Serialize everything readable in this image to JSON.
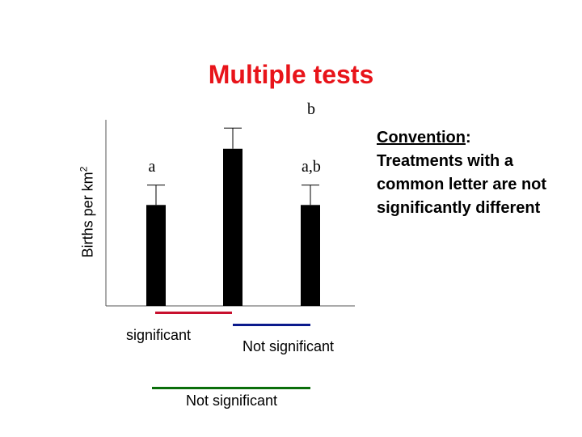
{
  "title": "Multiple tests",
  "chart_data": {
    "type": "bar",
    "title": "Multiple tests",
    "ylabel_text": "Births per km",
    "ylabel_superscript": "2",
    "xlabel": "",
    "error_bars": true,
    "grid": false,
    "categories": [
      "",
      "",
      ""
    ],
    "values": [
      122,
      190,
      122
    ],
    "error": [
      24,
      25,
      24
    ],
    "ylim": [
      0,
      225
    ],
    "letters": [
      "a",
      "b",
      "a,b"
    ]
  },
  "comparisons": [
    {
      "label": "significant",
      "color": "#c8102e"
    },
    {
      "label": "Not significant",
      "color": "#0b1a8c"
    },
    {
      "label": "Not significant",
      "color": "#0a6e0a"
    }
  ],
  "note": {
    "heading": "Convention",
    "heading_suffix": ":",
    "body": "Treatments with a common letter are not significantly different"
  }
}
